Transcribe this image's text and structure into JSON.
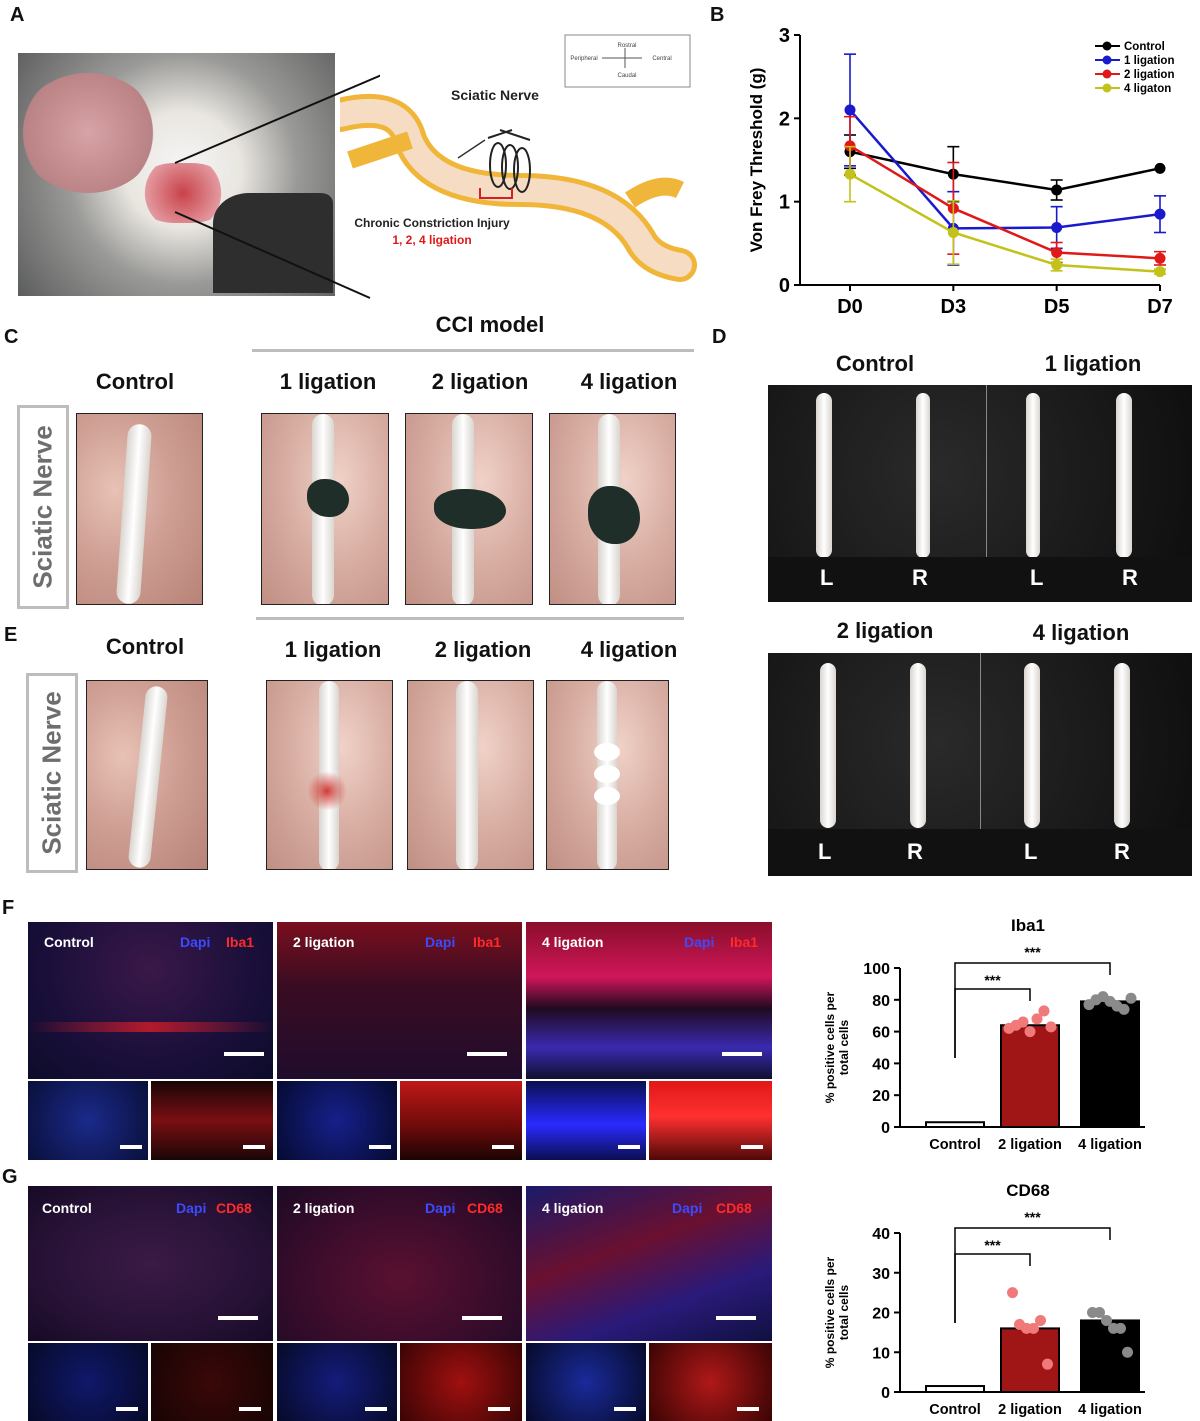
{
  "panels": {
    "A": {
      "letter": "A",
      "schematic": {
        "nerve_label": "Sciatic Nerve",
        "injury_label": "Chronic Constriction Injury",
        "ligation_label": "1, 2, 4 ligation",
        "compass": {
          "top": "Rostral",
          "bottom": "Caudal",
          "left": "Peripheral",
          "right": "Central"
        }
      }
    },
    "B": {
      "letter": "B"
    },
    "C": {
      "letter": "C",
      "group_title": "CCI model",
      "row_label": "Sciatic Nerve",
      "columns": [
        "Control",
        "1 ligation",
        "2 ligation",
        "4 ligation"
      ]
    },
    "D": {
      "letter": "D",
      "titles": [
        "Control",
        "1 ligation",
        "2 ligation",
        "4 ligation"
      ],
      "left": "L",
      "right": "R"
    },
    "E": {
      "letter": "E",
      "row_label": "Sciatic Nerve",
      "columns": [
        "Control",
        "1 ligation",
        "2 ligation",
        "4 ligation"
      ]
    },
    "F": {
      "letter": "F",
      "stain1": "Dapi",
      "stain2": "Iba1",
      "columns": [
        "Control",
        "2 ligation",
        "4 ligation"
      ]
    },
    "G": {
      "letter": "G",
      "stain1": "Dapi",
      "stain2": "CD68",
      "columns": [
        "Control",
        "2 ligation",
        "4 ligation"
      ]
    }
  },
  "chart_data": [
    {
      "type": "line",
      "title": "",
      "xlabel": "",
      "ylabel": "Von Frey Threshold (g)",
      "categories": [
        "D0",
        "D3",
        "D5",
        "D7"
      ],
      "ylim": [
        0,
        3
      ],
      "yticks": [
        0,
        1,
        2,
        3
      ],
      "legend_position": "top-right",
      "series": [
        {
          "name": "Control",
          "color": "#000000",
          "values": [
            1.6,
            1.33,
            1.14,
            1.4
          ],
          "err": [
            0.2,
            0.33,
            0.12,
            0.0
          ]
        },
        {
          "name": "1 ligation",
          "color": "#1a1acc",
          "values": [
            2.1,
            0.68,
            0.69,
            0.85
          ],
          "err": [
            0.67,
            0.44,
            0.25,
            0.22
          ]
        },
        {
          "name": "2 ligation",
          "color": "#e01818",
          "values": [
            1.67,
            0.92,
            0.39,
            0.32
          ],
          "err": [
            0.35,
            0.55,
            0.12,
            0.08
          ]
        },
        {
          "name": "4 ligaton",
          "color": "#c2c21a",
          "values": [
            1.33,
            0.63,
            0.24,
            0.16
          ],
          "err": [
            0.33,
            0.38,
            0.07,
            0.03
          ]
        }
      ]
    },
    {
      "type": "bar",
      "title": "Iba1",
      "ylabel": "% positive cells per total cells",
      "categories": [
        "Control",
        "2 ligation",
        "4 ligation"
      ],
      "values": [
        3,
        64,
        79
      ],
      "colors": [
        "#ffffff",
        "#a01616",
        "#000000"
      ],
      "point_colors": [
        "#888888",
        "#f07a7a",
        "#8a8a8a"
      ],
      "points": [
        [],
        [
          62,
          64,
          66,
          60,
          68,
          73,
          63
        ],
        [
          77,
          80,
          82,
          79,
          76,
          74,
          81
        ]
      ],
      "ylim": [
        0,
        100
      ],
      "yticks": [
        0,
        20,
        40,
        60,
        80,
        100
      ],
      "significance": [
        "***",
        "***"
      ]
    },
    {
      "type": "bar",
      "title": "CD68",
      "ylabel": "% positive cells per total cells",
      "categories": [
        "Control",
        "2 ligation",
        "4 ligation"
      ],
      "values": [
        1.5,
        16,
        18
      ],
      "colors": [
        "#ffffff",
        "#a01616",
        "#000000"
      ],
      "point_colors": [
        "#888888",
        "#f07a7a",
        "#8a8a8a"
      ],
      "points": [
        [],
        [
          25,
          17,
          16,
          16,
          18,
          7
        ],
        [
          20,
          20,
          18,
          16,
          16,
          10
        ]
      ],
      "ylim": [
        0,
        40
      ],
      "yticks": [
        0,
        10,
        20,
        30,
        40
      ],
      "significance": [
        "***",
        "***"
      ]
    }
  ]
}
